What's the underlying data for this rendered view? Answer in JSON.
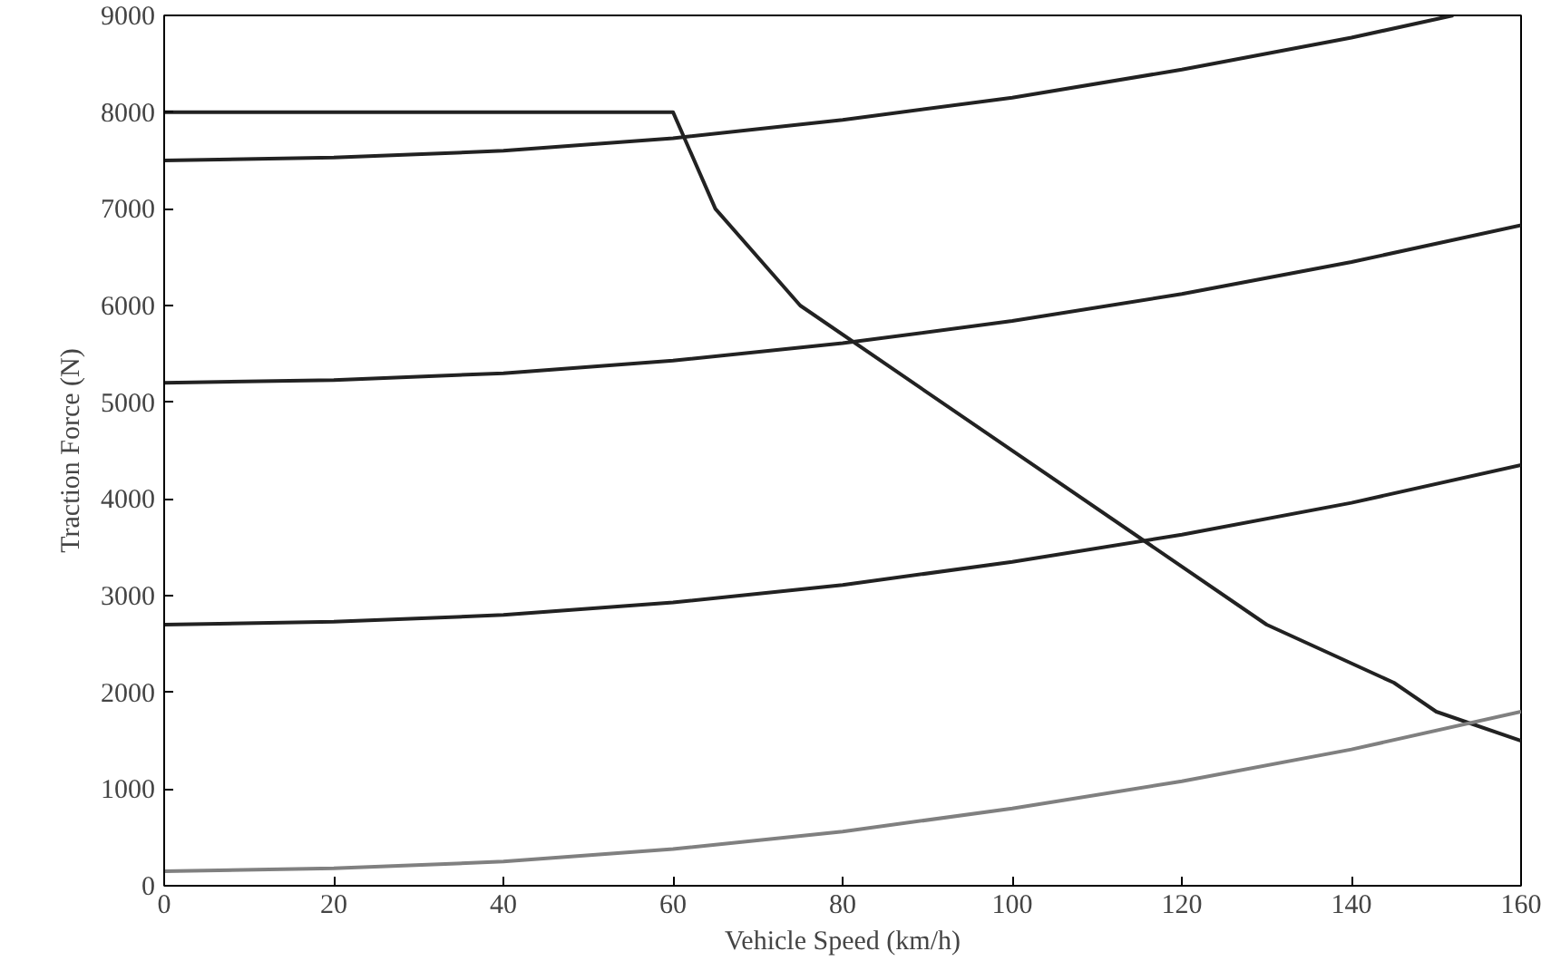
{
  "chart_data": {
    "type": "line",
    "xlabel": "Vehicle Speed (km/h)",
    "ylabel": "Traction Force (N)",
    "xlim": [
      0,
      160
    ],
    "ylim": [
      0,
      9000
    ],
    "xticks": [
      0,
      20,
      40,
      60,
      80,
      100,
      120,
      140,
      160
    ],
    "yticks": [
      0,
      1000,
      2000,
      3000,
      4000,
      5000,
      6000,
      7000,
      8000,
      9000
    ],
    "marker": "none",
    "line_style": "solid",
    "series": [
      {
        "color": "#222222",
        "x": [
          0,
          60,
          65,
          75,
          130,
          145,
          150,
          160
        ],
        "values": [
          8000,
          8000,
          7000,
          6000,
          2700,
          2100,
          1800,
          1500
        ]
      },
      {
        "color": "#222222",
        "x": [
          0,
          20,
          40,
          60,
          80,
          100,
          120,
          140,
          152
        ],
        "values": [
          7500,
          7530,
          7600,
          7730,
          7920,
          8150,
          8440,
          8770,
          9000
        ]
      },
      {
        "color": "#222222",
        "x": [
          0,
          20,
          40,
          60,
          80,
          100,
          120,
          140,
          160
        ],
        "values": [
          5200,
          5230,
          5300,
          5430,
          5610,
          5840,
          6120,
          6450,
          6830
        ]
      },
      {
        "color": "#222222",
        "x": [
          0,
          20,
          40,
          60,
          80,
          100,
          120,
          140,
          160
        ],
        "values": [
          2700,
          2730,
          2800,
          2930,
          3110,
          3350,
          3630,
          3960,
          4350
        ]
      },
      {
        "color": "#808080",
        "x": [
          0,
          20,
          40,
          60,
          80,
          100,
          120,
          140,
          160
        ],
        "values": [
          150,
          180,
          250,
          380,
          560,
          800,
          1080,
          1410,
          1800
        ]
      }
    ]
  }
}
